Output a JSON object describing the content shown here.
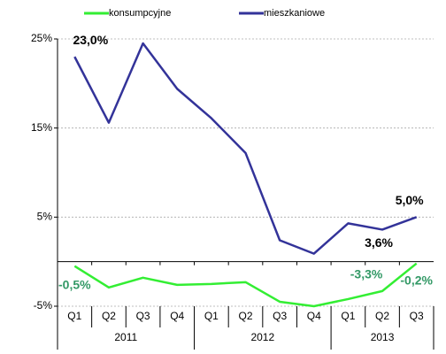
{
  "chart_data": {
    "type": "line",
    "category_groups": [
      {
        "name": "2011",
        "categories": [
          "Q1",
          "Q2",
          "Q3",
          "Q4"
        ]
      },
      {
        "name": "2012",
        "categories": [
          "Q1",
          "Q2",
          "Q3",
          "Q4"
        ]
      },
      {
        "name": "2013",
        "categories": [
          "Q1",
          "Q2",
          "Q3"
        ]
      }
    ],
    "series": [
      {
        "name": "konsumpcyjne",
        "color": "#33ee33",
        "label_color": "#339966",
        "values": [
          -0.5,
          -2.9,
          -1.8,
          -2.6,
          -2.5,
          -2.3,
          -4.5,
          -5.0,
          -4.2,
          -3.3,
          -0.2
        ],
        "value_labels": [
          "-0,5%",
          null,
          null,
          null,
          null,
          null,
          null,
          null,
          null,
          "-3,3%",
          "-0,2%"
        ]
      },
      {
        "name": "mieszkaniowe",
        "color": "#333399",
        "label_color": "#000000",
        "values": [
          23.0,
          15.6,
          24.5,
          19.4,
          16.1,
          12.2,
          2.4,
          0.9,
          4.3,
          3.6,
          5.0
        ],
        "value_labels": [
          "23,0%",
          null,
          null,
          null,
          null,
          null,
          null,
          null,
          null,
          "3,6%",
          "5,0%"
        ]
      }
    ],
    "ylim": [
      -5,
      25
    ],
    "yticks": [
      {
        "value": -5,
        "label": "-5%"
      },
      {
        "value": 5,
        "label": "5%"
      },
      {
        "value": 15,
        "label": "15%"
      },
      {
        "value": 25,
        "label": "25%"
      }
    ],
    "grid": true,
    "legend": "top"
  }
}
